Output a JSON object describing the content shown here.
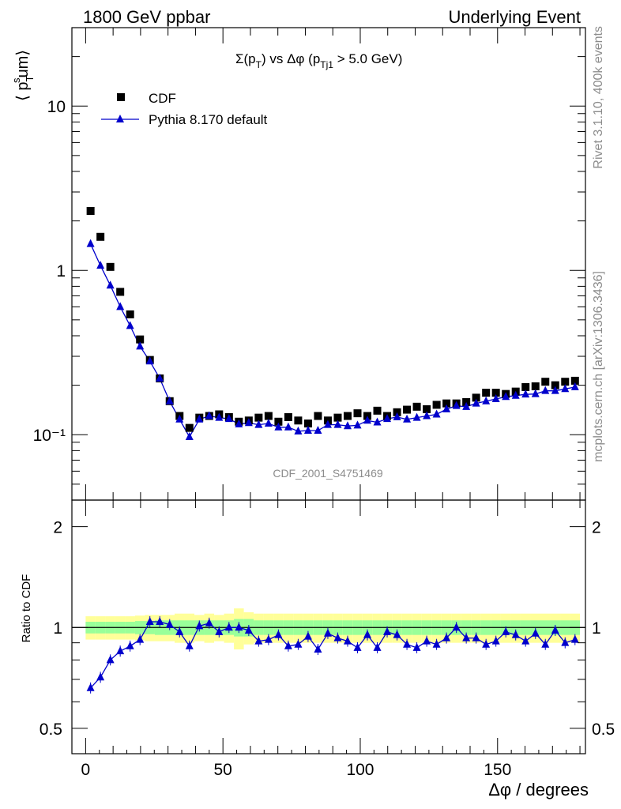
{
  "header": {
    "left": "1800 GeV ppbar",
    "right": "Underlying Event"
  },
  "side_labels": {
    "rivet": "Rivet 3.1.10,  400k events",
    "mcplots": "mcplots.cern.ch [arXiv:1306.3436]"
  },
  "chart_data": [
    {
      "type": "scatter",
      "title": "Σ(p_T) vs Δφ (p_Tj1 > 5.0 GeV)",
      "title_parts": {
        "sigma": "Σ(p",
        "sub1": "T",
        "mid": ") vs Δφ (p",
        "sub2": "Tj1",
        "end": " > 5.0 GeV)"
      },
      "ylabel": "⟨ p_T^sum⟩",
      "ylabel_parts": {
        "open": "⟨ p",
        "sub": "T",
        "sup": "s",
        "rest": "um⟩"
      },
      "yscale": "log",
      "ylim": [
        0.04,
        30
      ],
      "yticks": [
        {
          "value": 10,
          "label": "10"
        },
        {
          "value": 1,
          "label": "1"
        },
        {
          "value": 0.1,
          "label": "10⁻¹"
        }
      ],
      "xlim": [
        -5,
        182
      ],
      "watermark": "CDF_2001_S4751469",
      "legend_position": "top-left",
      "x": [
        1.8,
        5.4,
        9.0,
        12.6,
        16.2,
        19.8,
        23.4,
        27.0,
        30.6,
        34.2,
        37.8,
        41.4,
        45.0,
        48.6,
        52.2,
        55.8,
        59.4,
        63.0,
        66.6,
        70.2,
        73.8,
        77.4,
        81.0,
        84.6,
        88.2,
        91.8,
        95.4,
        99.0,
        102.6,
        106.2,
        109.8,
        113.4,
        117.0,
        120.6,
        124.2,
        127.8,
        131.4,
        135.0,
        138.6,
        142.2,
        145.8,
        149.4,
        153.0,
        156.6,
        160.2,
        163.8,
        167.4,
        171.0,
        174.6,
        178.2
      ],
      "series": [
        {
          "name": "CDF",
          "marker": "square",
          "color": "#000000",
          "values": [
            2.3,
            1.6,
            1.05,
            0.74,
            0.54,
            0.38,
            0.285,
            0.22,
            0.16,
            0.13,
            0.11,
            0.127,
            0.13,
            0.133,
            0.128,
            0.12,
            0.122,
            0.127,
            0.13,
            0.12,
            0.128,
            0.122,
            0.117,
            0.13,
            0.122,
            0.127,
            0.13,
            0.135,
            0.13,
            0.14,
            0.13,
            0.137,
            0.142,
            0.148,
            0.143,
            0.152,
            0.155,
            0.155,
            0.158,
            0.168,
            0.18,
            0.18,
            0.177,
            0.183,
            0.195,
            0.197,
            0.21,
            0.2,
            0.21,
            0.213
          ]
        },
        {
          "name": "Pythia 8.170 default",
          "marker": "triangle",
          "color": "#0000cc",
          "values": [
            1.45,
            1.07,
            0.81,
            0.6,
            0.46,
            0.345,
            0.28,
            0.22,
            0.16,
            0.124,
            0.097,
            0.124,
            0.13,
            0.127,
            0.125,
            0.116,
            0.118,
            0.115,
            0.117,
            0.111,
            0.111,
            0.105,
            0.106,
            0.106,
            0.115,
            0.115,
            0.113,
            0.114,
            0.122,
            0.119,
            0.125,
            0.128,
            0.124,
            0.127,
            0.13,
            0.133,
            0.143,
            0.15,
            0.148,
            0.155,
            0.16,
            0.165,
            0.17,
            0.173,
            0.176,
            0.177,
            0.185,
            0.185,
            0.19,
            0.195
          ]
        }
      ]
    },
    {
      "type": "scatter",
      "ylabel": "Ratio to CDF",
      "xlabel": "Δφ / degrees",
      "yscale": "log",
      "ylim": [
        0.42,
        2.4
      ],
      "yticks": [
        {
          "value": 2,
          "label": "2"
        },
        {
          "value": 1,
          "label": "1"
        },
        {
          "value": 0.5,
          "label": "0.5"
        }
      ],
      "xlim": [
        -5,
        182
      ],
      "xticks": [
        0,
        50,
        100,
        150
      ],
      "reference_line": 1,
      "band_colors": {
        "inner": "#99ff99",
        "outer": "#ffff99"
      },
      "band_inner_halfwidth": [
        0.04,
        0.04,
        0.04,
        0.04,
        0.04,
        0.045,
        0.045,
        0.05,
        0.05,
        0.05,
        0.05,
        0.05,
        0.05,
        0.05,
        0.05,
        0.06,
        0.06,
        0.05,
        0.05,
        0.05,
        0.05,
        0.05,
        0.05,
        0.05,
        0.05,
        0.05,
        0.05,
        0.05,
        0.05,
        0.05,
        0.05,
        0.05,
        0.05,
        0.05,
        0.05,
        0.05,
        0.05,
        0.05,
        0.05,
        0.05,
        0.05,
        0.05,
        0.05,
        0.05,
        0.05,
        0.05,
        0.05,
        0.05,
        0.05,
        0.05
      ],
      "band_outer_halfwidth": [
        0.08,
        0.08,
        0.08,
        0.08,
        0.08,
        0.085,
        0.09,
        0.09,
        0.09,
        0.1,
        0.1,
        0.09,
        0.1,
        0.09,
        0.1,
        0.14,
        0.11,
        0.1,
        0.1,
        0.1,
        0.1,
        0.1,
        0.1,
        0.1,
        0.1,
        0.1,
        0.1,
        0.1,
        0.1,
        0.1,
        0.1,
        0.1,
        0.1,
        0.1,
        0.1,
        0.1,
        0.1,
        0.1,
        0.1,
        0.1,
        0.1,
        0.1,
        0.1,
        0.1,
        0.1,
        0.1,
        0.1,
        0.1,
        0.1,
        0.1
      ],
      "series": [
        {
          "name": "Pythia 8.170 default",
          "marker": "triangle",
          "color": "#0000cc",
          "values": [
            0.66,
            0.71,
            0.8,
            0.85,
            0.88,
            0.92,
            1.04,
            1.04,
            1.02,
            0.97,
            0.88,
            1.01,
            1.03,
            0.97,
            1.0,
            1.0,
            0.98,
            0.91,
            0.92,
            0.95,
            0.88,
            0.89,
            0.94,
            0.86,
            0.96,
            0.93,
            0.91,
            0.87,
            0.95,
            0.87,
            0.97,
            0.95,
            0.89,
            0.87,
            0.91,
            0.89,
            0.93,
            1.0,
            0.93,
            0.93,
            0.89,
            0.91,
            0.97,
            0.95,
            0.91,
            0.96,
            0.89,
            0.98,
            0.9,
            0.92
          ]
        }
      ]
    }
  ]
}
